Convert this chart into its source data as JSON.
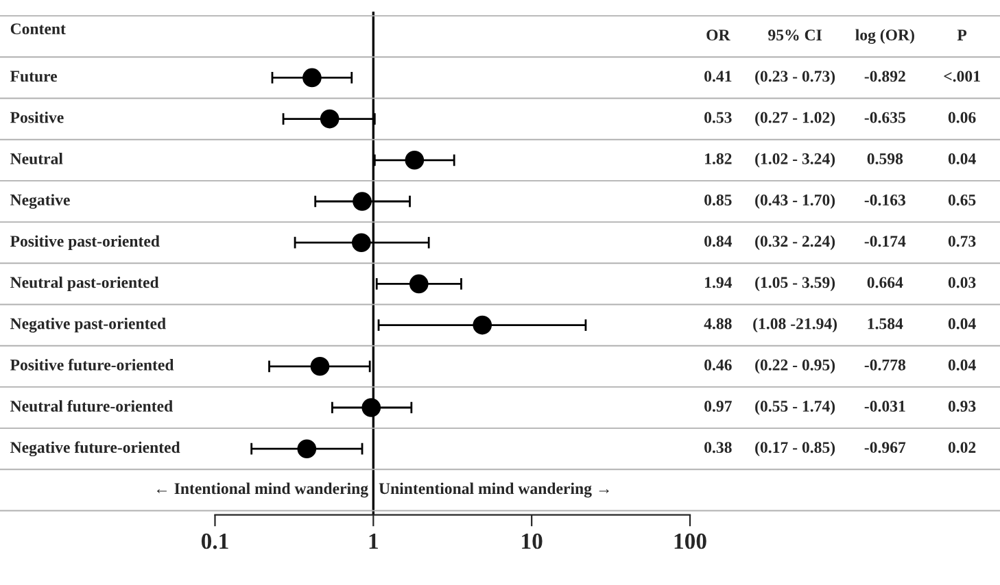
{
  "chart_data": {
    "type": "scatter",
    "orientation": "horizontal",
    "categories": [
      "Future",
      "Positive",
      "Neutral",
      "Negative",
      "Positive past-oriented",
      "Neutral past-oriented",
      "Negative past-oriented",
      "Positive future-oriented",
      "Neutral future-oriented",
      "Negative future-oriented"
    ],
    "color": "#000000",
    "values": [
      0.41,
      0.53,
      1.82,
      0.85,
      0.84,
      1.94,
      4.88,
      0.46,
      0.97,
      0.38
    ],
    "errors": [
      [
        0.23,
        0.73
      ],
      [
        0.27,
        1.02
      ],
      [
        1.02,
        3.24
      ],
      [
        0.43,
        1.7
      ],
      [
        0.32,
        2.24
      ],
      [
        1.05,
        3.59
      ],
      [
        1.08,
        21.94
      ],
      [
        0.22,
        0.95
      ],
      [
        0.55,
        1.74
      ],
      [
        0.17,
        0.85
      ]
    ],
    "value_labels": [
      "0.41",
      "0.53",
      "1.82",
      "0.85",
      "0.84",
      "1.94",
      "4.88",
      "0.46",
      "0.97",
      "0.38"
    ],
    "log": "x",
    "xlim": [
      0.1,
      100
    ],
    "xticks": [
      0.1,
      1,
      10,
      100
    ],
    "marker": "circle",
    "grid": false,
    "legend": false,
    "ref_lines": [
      {
        "axis": "x",
        "value": 1,
        "color": "#000000"
      }
    ],
    "annotations": [
      "Content",
      "OR",
      "95% CI",
      "log (OR)",
      "P",
      "(0.23 - 0.73)",
      "-0.892",
      "<.001",
      "(0.27 - 1.02)",
      "-0.635",
      "0.06",
      "(1.02 - 3.24)",
      "0.598",
      "0.04",
      "(0.43 - 1.70)",
      "-0.163",
      "0.65",
      "(0.32 - 2.24)",
      "-0.174",
      "0.73",
      "(1.05 - 3.59)",
      "0.664",
      "0.03",
      "(1.08 -21.94)",
      "1.584",
      "0.04",
      "(0.22 - 0.95)",
      "-0.778",
      "0.04",
      "(0.55 - 1.74)",
      "-0.031",
      "0.93",
      "(0.17 - 0.85)",
      "-0.967",
      "0.02",
      "← Intentional mind wandering",
      "Unintentional mind wandering →"
    ]
  }
}
